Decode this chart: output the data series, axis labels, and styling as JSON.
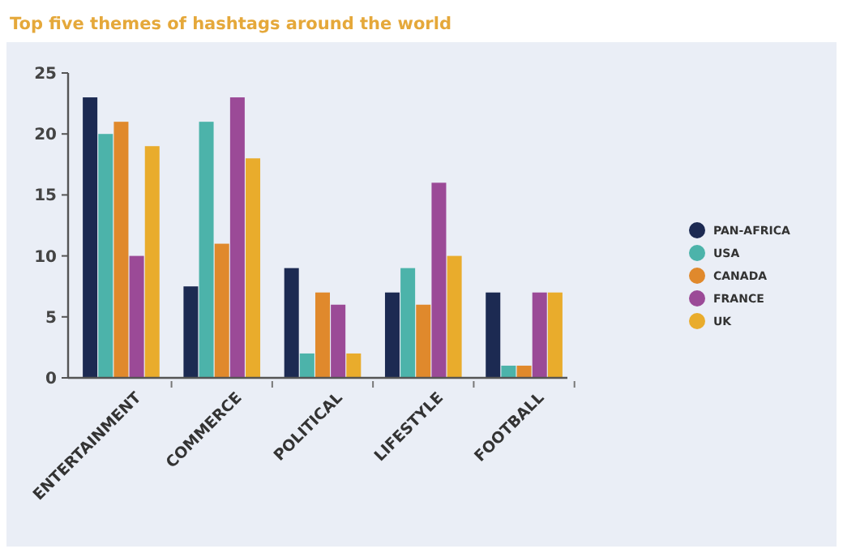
{
  "chart_data": {
    "type": "bar",
    "title": "Top five themes of hashtags around the world",
    "categories": [
      "ENTERTAINMENT",
      "COMMERCE",
      "POLITICAL",
      "LIFESTYLE",
      "FOOTBALL"
    ],
    "series": [
      {
        "name": "PAN-AFRICA",
        "color": "#1c2a52",
        "values": [
          23,
          7.5,
          9,
          7,
          7
        ]
      },
      {
        "name": "USA",
        "color": "#4cb3aa",
        "values": [
          20,
          21,
          2,
          9,
          1
        ]
      },
      {
        "name": "CANADA",
        "color": "#e0892c",
        "values": [
          21,
          11,
          7,
          6,
          1
        ]
      },
      {
        "name": "FRANCE",
        "color": "#9b4a97",
        "values": [
          10,
          23,
          6,
          16,
          7
        ]
      },
      {
        "name": "UK",
        "color": "#e9ac2c",
        "values": [
          19,
          18,
          2,
          10,
          7
        ]
      }
    ],
    "ylim": [
      0,
      25
    ],
    "yticks": [
      0,
      5,
      10,
      15,
      20,
      25
    ],
    "grid": false,
    "legend": "right"
  }
}
